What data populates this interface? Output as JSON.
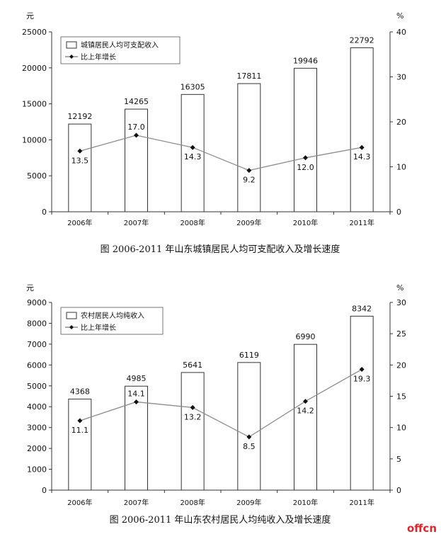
{
  "chart_data": [
    {
      "type": "bar",
      "categories": [
        "2006年",
        "2007年",
        "2008年",
        "2009年",
        "2010年",
        "2011年"
      ],
      "series": [
        {
          "name": "城镇居民人均可支配收入",
          "type": "bar",
          "axis": "left",
          "values": [
            12192,
            14265,
            16305,
            17811,
            19946,
            22792
          ],
          "labels": [
            "12192",
            "14265",
            "16305",
            "17811",
            "19946",
            "22792"
          ]
        },
        {
          "name": "比上年增长",
          "type": "line",
          "axis": "right",
          "values": [
            13.5,
            17.0,
            14.3,
            9.2,
            12.0,
            14.3
          ],
          "labels": [
            "13.5",
            "17.0",
            "14.3",
            "9.2",
            "12.0",
            "14.3"
          ]
        }
      ],
      "ylabel": "元",
      "y2label": "%",
      "ylim": [
        0,
        25000
      ],
      "y2lim": [
        0,
        40
      ],
      "yticks": [
        "0",
        "5000",
        "10000",
        "15000",
        "20000",
        "25000"
      ],
      "y2ticks": [
        "0",
        "10",
        "20",
        "30",
        "40"
      ],
      "legend": "top-left",
      "caption": "图 2006-2011 年山东城镇居民人均可支配收入及增长速度"
    },
    {
      "type": "bar",
      "categories": [
        "2006年",
        "2007年",
        "2008年",
        "2009年",
        "2010年",
        "2011年"
      ],
      "series": [
        {
          "name": "农村居民人均纯收入",
          "type": "bar",
          "axis": "left",
          "values": [
            4368,
            4985,
            5641,
            6119,
            6990,
            8342
          ],
          "labels": [
            "4368",
            "4985",
            "5641",
            "6119",
            "6990",
            "8342"
          ]
        },
        {
          "name": "比上年增长",
          "type": "line",
          "axis": "right",
          "values": [
            11.1,
            14.1,
            13.2,
            8.5,
            14.2,
            19.3
          ],
          "labels": [
            "11.1",
            "14.1",
            "13.2",
            "8.5",
            "14.2",
            "19.3"
          ]
        }
      ],
      "ylabel": "元",
      "y2label": "%",
      "ylim": [
        0,
        9000
      ],
      "y2lim": [
        0,
        30
      ],
      "yticks": [
        "0",
        "1000",
        "2000",
        "3000",
        "4000",
        "5000",
        "6000",
        "7000",
        "8000",
        "9000"
      ],
      "y2ticks": [
        "0",
        "5",
        "10",
        "15",
        "20",
        "25",
        "30"
      ],
      "legend": "top-left",
      "caption": "图 2006-2011 年山东农村居民人均纯收入及增长速度"
    }
  ],
  "watermark": {
    "text": "offcn",
    "color_main": "#e0262a",
    "color_accent": "#e0262a"
  }
}
